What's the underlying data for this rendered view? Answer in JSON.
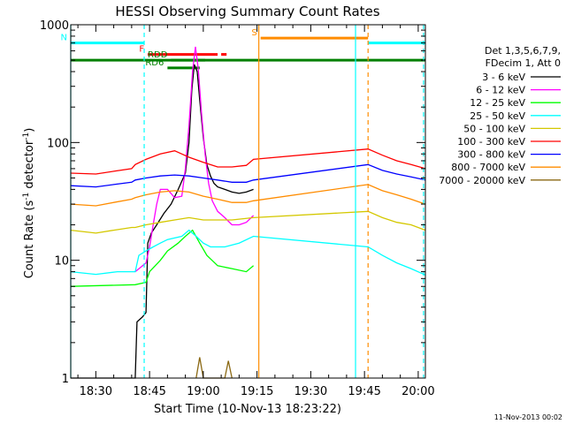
{
  "chart_data": {
    "type": "line",
    "title": "HESSI Observing Summary Count Rates",
    "xlabel": "Start Time (10-Nov-13 18:23:22)",
    "ylabel_main": "Count Rate (s",
    "ylabel_sup": "-1",
    "ylabel_tail": " detector",
    "ylabel_end": ")",
    "y_scale": "log",
    "ylim": [
      1,
      1000
    ],
    "xlim_minutes_after_1830": [
      -7,
      92
    ],
    "x_ticks": [
      {
        "t": 0,
        "label": "18:30"
      },
      {
        "t": 15,
        "label": "18:45"
      },
      {
        "t": 30,
        "label": "19:00"
      },
      {
        "t": 45,
        "label": "19:15"
      },
      {
        "t": 60,
        "label": "19:30"
      },
      {
        "t": 75,
        "label": "19:45"
      },
      {
        "t": 90,
        "label": "20:00"
      }
    ],
    "y_tick_labels": [
      {
        "v": 1000,
        "label": "1000"
      },
      {
        "v": 100,
        "label": "100"
      },
      {
        "v": 10,
        "label": "10"
      },
      {
        "v": 1,
        "label": "1"
      }
    ],
    "legend_header": [
      "Det 1,3,5,6,7,9,",
      "FDecim 1, Att 0"
    ],
    "series": [
      {
        "name": "3 - 6 keV",
        "color": "#000000",
        "points": [
          [
            -7,
            1
          ],
          [
            11,
            1
          ],
          [
            11.5,
            3
          ],
          [
            13,
            3.3
          ],
          [
            14,
            3.6
          ],
          [
            14.5,
            14
          ],
          [
            15.5,
            17
          ],
          [
            17,
            20
          ],
          [
            19,
            25
          ],
          [
            21,
            30
          ],
          [
            23,
            40
          ],
          [
            25,
            55
          ],
          [
            26,
            100
          ],
          [
            26.8,
            280
          ],
          [
            27.5,
            460
          ],
          [
            28.3,
            400
          ],
          [
            29,
            230
          ],
          [
            30,
            110
          ],
          [
            31,
            65
          ],
          [
            32,
            52
          ],
          [
            33,
            45
          ],
          [
            34,
            42
          ],
          [
            36,
            40
          ],
          [
            38,
            38
          ],
          [
            40,
            37
          ],
          [
            42,
            38
          ],
          [
            44,
            40
          ]
        ]
      },
      {
        "name": "6 - 12 keV",
        "color": "#ff00ff",
        "points": [
          [
            11,
            8
          ],
          [
            14,
            9.5
          ],
          [
            15,
            13
          ],
          [
            16,
            20
          ],
          [
            17,
            30
          ],
          [
            18,
            40
          ],
          [
            20,
            40
          ],
          [
            22,
            34
          ],
          [
            24,
            35
          ],
          [
            25,
            60
          ],
          [
            26,
            140
          ],
          [
            27,
            400
          ],
          [
            27.8,
            650
          ],
          [
            28.6,
            420
          ],
          [
            29.5,
            180
          ],
          [
            30.5,
            80
          ],
          [
            31.5,
            45
          ],
          [
            32.5,
            32
          ],
          [
            34,
            26
          ],
          [
            36,
            23
          ],
          [
            38,
            20
          ],
          [
            40,
            20
          ],
          [
            42,
            21
          ],
          [
            44,
            24
          ]
        ]
      },
      {
        "name": "12 - 25 keV",
        "color": "#00ff00",
        "points": [
          [
            -7,
            6
          ],
          [
            11,
            6.2
          ],
          [
            14,
            6.5
          ],
          [
            15,
            8
          ],
          [
            18,
            10
          ],
          [
            20,
            12
          ],
          [
            23,
            14
          ],
          [
            25,
            16
          ],
          [
            27,
            18
          ],
          [
            29,
            14
          ],
          [
            31,
            11
          ],
          [
            34,
            9
          ],
          [
            38,
            8.5
          ],
          [
            42,
            8
          ],
          [
            44,
            9
          ]
        ]
      },
      {
        "name": "25 - 50 keV",
        "color": "#00ffff",
        "points": [
          [
            -7,
            8
          ],
          [
            0,
            7.6
          ],
          [
            6,
            8
          ],
          [
            11,
            8
          ],
          [
            12,
            11
          ],
          [
            14,
            12
          ],
          [
            16,
            13
          ],
          [
            18,
            14
          ],
          [
            20,
            15
          ],
          [
            24,
            16
          ],
          [
            26,
            18
          ],
          [
            28,
            16
          ],
          [
            30,
            14
          ],
          [
            32,
            13
          ],
          [
            36,
            13
          ],
          [
            40,
            14
          ],
          [
            44,
            16
          ],
          [
            76,
            13
          ],
          [
            80,
            11
          ],
          [
            84,
            9.5
          ],
          [
            88,
            8.5
          ],
          [
            92,
            7.5
          ]
        ]
      },
      {
        "name": "50 - 100 keV",
        "color": "#d4c800",
        "points": [
          [
            -7,
            18
          ],
          [
            0,
            17
          ],
          [
            5,
            18
          ],
          [
            10,
            19
          ],
          [
            11,
            19
          ],
          [
            14,
            20
          ],
          [
            18,
            21
          ],
          [
            22,
            22
          ],
          [
            26,
            23
          ],
          [
            30,
            22
          ],
          [
            34,
            22
          ],
          [
            38,
            22
          ],
          [
            44,
            23
          ],
          [
            76,
            26
          ],
          [
            80,
            23
          ],
          [
            84,
            21
          ],
          [
            88,
            20
          ],
          [
            92,
            18
          ]
        ]
      },
      {
        "name": "100 - 300 keV",
        "color": "#ff0000",
        "points": [
          [
            -7,
            55
          ],
          [
            0,
            54
          ],
          [
            5,
            57
          ],
          [
            10,
            60
          ],
          [
            11,
            65
          ],
          [
            14,
            72
          ],
          [
            18,
            80
          ],
          [
            22,
            85
          ],
          [
            24,
            80
          ],
          [
            26,
            75
          ],
          [
            30,
            68
          ],
          [
            34,
            62
          ],
          [
            38,
            62
          ],
          [
            42,
            64
          ],
          [
            44,
            72
          ],
          [
            76,
            88
          ],
          [
            80,
            78
          ],
          [
            84,
            70
          ],
          [
            88,
            65
          ],
          [
            92,
            60
          ]
        ]
      },
      {
        "name": "300 - 800 keV",
        "color": "#0000ff",
        "points": [
          [
            -7,
            43
          ],
          [
            0,
            42
          ],
          [
            5,
            44
          ],
          [
            10,
            46
          ],
          [
            11,
            48
          ],
          [
            14,
            50
          ],
          [
            18,
            52
          ],
          [
            22,
            53
          ],
          [
            26,
            52
          ],
          [
            30,
            50
          ],
          [
            34,
            48
          ],
          [
            38,
            46
          ],
          [
            42,
            46
          ],
          [
            44,
            48
          ],
          [
            76,
            65
          ],
          [
            80,
            58
          ],
          [
            84,
            54
          ],
          [
            88,
            51
          ],
          [
            92,
            48
          ]
        ]
      },
      {
        "name": "800 - 7000 keV",
        "color": "#ff8c00",
        "points": [
          [
            -7,
            30
          ],
          [
            0,
            29
          ],
          [
            5,
            31
          ],
          [
            10,
            33
          ],
          [
            11,
            34
          ],
          [
            14,
            36
          ],
          [
            18,
            38
          ],
          [
            22,
            39
          ],
          [
            26,
            38
          ],
          [
            30,
            35
          ],
          [
            34,
            33
          ],
          [
            38,
            31
          ],
          [
            42,
            31
          ],
          [
            44,
            32
          ],
          [
            76,
            44
          ],
          [
            80,
            39
          ],
          [
            84,
            36
          ],
          [
            88,
            33
          ],
          [
            92,
            30
          ]
        ]
      },
      {
        "name": "7000 - 20000 keV",
        "color": "#8b6914",
        "points": [
          [
            28,
            1
          ],
          [
            29,
            1.5
          ],
          [
            30,
            1
          ],
          [
            36,
            1
          ],
          [
            37,
            1.4
          ],
          [
            38,
            1
          ]
        ]
      }
    ],
    "flag_bars": [
      {
        "label": "N",
        "color": "#00ffff",
        "spans": [
          [
            -7,
            13.5
          ],
          [
            76,
            92
          ]
        ],
        "level": 700
      },
      {
        "label": "F",
        "color": "#ff0000",
        "spans": [
          [
            14.5,
            34
          ],
          [
            35,
            36.5
          ]
        ],
        "level": 560
      },
      {
        "label": "S",
        "color": "#ff8c00",
        "spans": [
          [
            46,
            76
          ]
        ],
        "level": 770
      },
      {
        "label": "",
        "color": "#008000",
        "spans": [
          [
            -7,
            92
          ]
        ],
        "level": 500
      },
      {
        "label": "RDD",
        "color": "#008000",
        "spans": [
          [
            21,
            30.5
          ]
        ],
        "level": 500
      },
      {
        "label": "RD6",
        "color": "#008000",
        "spans": [
          [
            20,
            29
          ]
        ],
        "level": 430
      }
    ],
    "vlines": [
      {
        "t": -7,
        "color": "#00ffff",
        "dashed": false
      },
      {
        "t": 13.5,
        "color": "#00ffff",
        "dashed": true
      },
      {
        "t": 45.5,
        "color": "#ff8c00",
        "dashed": false
      },
      {
        "t": 72.5,
        "color": "#00ffff",
        "dashed": false
      },
      {
        "t": 76,
        "color": "#ff8c00",
        "dashed": true
      },
      {
        "t": 91.5,
        "color": "#00ffff",
        "dashed": true
      }
    ]
  },
  "footer_date": "11-Nov-2013 00:02"
}
